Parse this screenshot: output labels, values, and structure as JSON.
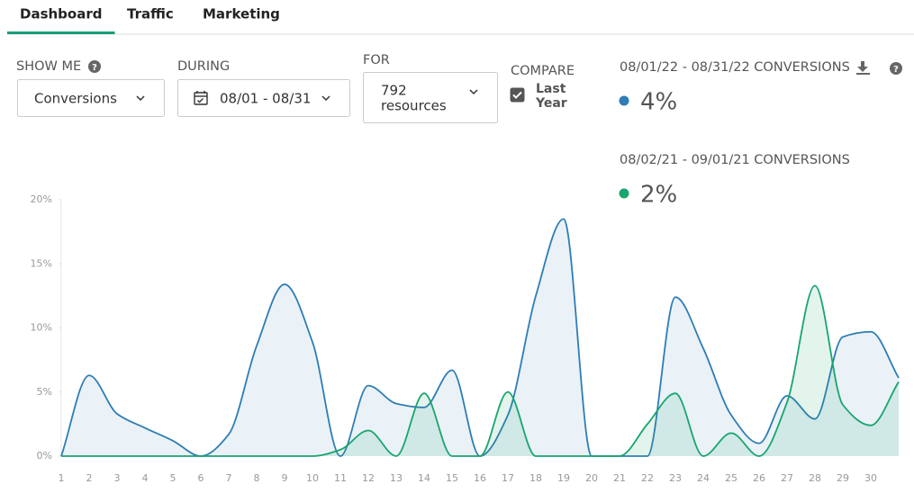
{
  "tabs": [
    "Dashboard",
    "Traffic",
    "Marketing"
  ],
  "active_tab": 0,
  "controls": {
    "show_me": {
      "label": "SHOW ME",
      "value": "Conversions"
    },
    "during": {
      "label": "DURING",
      "value": "08/01 - 08/31"
    },
    "for": {
      "label": "FOR",
      "value_lines": [
        "792",
        "resources"
      ]
    },
    "compare": {
      "label": "COMPARE",
      "value_lines": [
        "Last",
        "Year"
      ],
      "checked": true
    }
  },
  "chart_data": {
    "type": "area",
    "categories": [
      "1",
      "2",
      "3",
      "4",
      "5",
      "6",
      "7",
      "8",
      "9",
      "10",
      "11",
      "12",
      "13",
      "14",
      "15",
      "16",
      "17",
      "18",
      "19",
      "20",
      "21",
      "22",
      "23",
      "24",
      "25",
      "26",
      "27",
      "28",
      "29",
      "30",
      null
    ],
    "series": [
      {
        "name": "08/01/22 - 08/31/22 CONVERSIONS",
        "summary": "4%",
        "color": "#2e7db5",
        "fill": "rgba(46,125,181,0.10)",
        "values": [
          0,
          6.3,
          3.3,
          2.2,
          1.2,
          0,
          1.7,
          8.6,
          13.4,
          8.9,
          0,
          5.5,
          4.1,
          3.8,
          6.7,
          0,
          3.2,
          12.5,
          18.5,
          0,
          0,
          0,
          12.4,
          8.4,
          3.2,
          1.0,
          4.7,
          2.9,
          9.3,
          9.7,
          6.1
        ]
      },
      {
        "name": "08/02/21 - 09/01/21 CONVERSIONS",
        "summary": "2%",
        "color": "#18a56e",
        "fill": "rgba(24,165,110,0.12)",
        "values": [
          0,
          0,
          0,
          0,
          0,
          0,
          0,
          0,
          0,
          0,
          0.5,
          2.0,
          0,
          4.9,
          0,
          0,
          5.0,
          0,
          0,
          0,
          0,
          2.5,
          4.9,
          0,
          1.8,
          0,
          4.2,
          13.3,
          4.0,
          2.4,
          5.8
        ]
      }
    ],
    "ylim": [
      0,
      20
    ],
    "yticks": [
      {
        "value": 0,
        "label": "0%"
      },
      {
        "value": 5,
        "label": "5%"
      },
      {
        "value": 10,
        "label": "10%"
      },
      {
        "value": 15,
        "label": "15%"
      },
      {
        "value": 20,
        "label": "20%"
      }
    ],
    "grid": false
  }
}
